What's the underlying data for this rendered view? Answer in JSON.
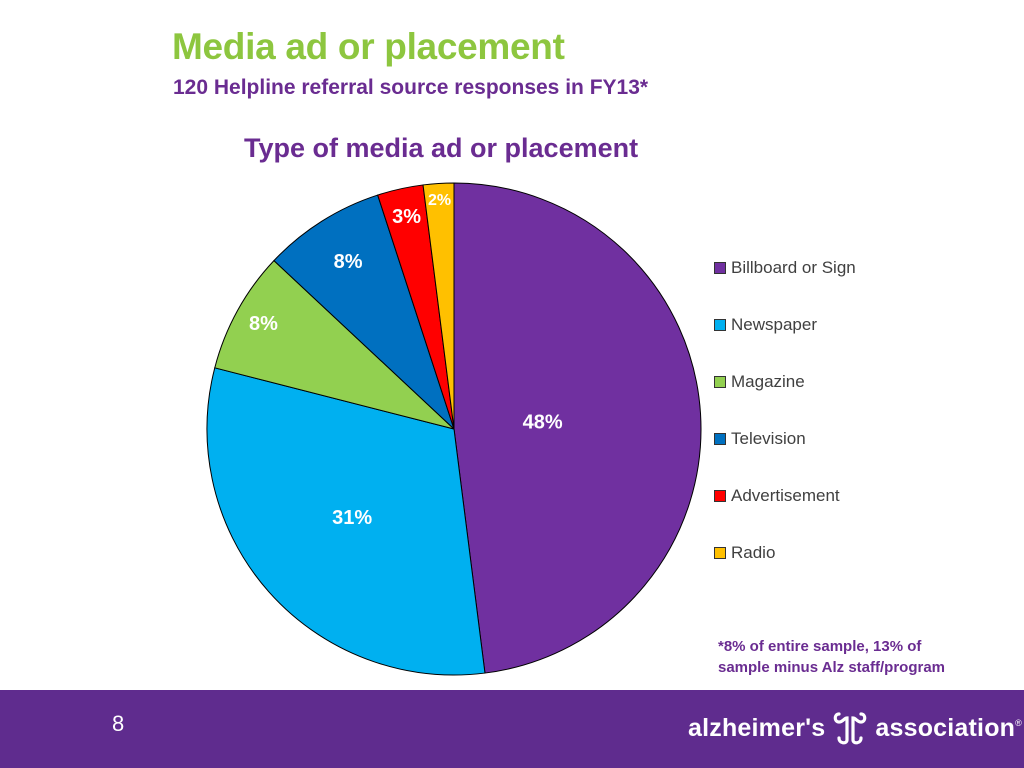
{
  "slide": {
    "title": "Media ad or placement",
    "subtitle": "120 Helpline referral source responses in FY13*",
    "footnote_line1": "*8% of entire sample, 13% of",
    "footnote_line2": "sample minus Alz staff/program",
    "page_number": "8"
  },
  "logo": {
    "word1": "alzheimer's",
    "word2": "association",
    "reg": "®"
  },
  "colors": {
    "title_green": "#8dc63f",
    "brand_purple": "#6a2c91",
    "footer_purple": "#5f2c8e"
  },
  "chart_data": {
    "type": "pie",
    "title": "Type of media ad or placement",
    "start_angle_deg": 0,
    "direction": "clockwise",
    "legend_position": "right",
    "slices": [
      {
        "label": "Billboard or Sign",
        "value": 48,
        "display": "48%",
        "color": "#7030a0"
      },
      {
        "label": "Newspaper",
        "value": 31,
        "display": "31%",
        "color": "#00b0f0"
      },
      {
        "label": "Magazine",
        "value": 8,
        "display": "8%",
        "color": "#92d050"
      },
      {
        "label": "Television",
        "value": 8,
        "display": "8%",
        "color": "#0070c0"
      },
      {
        "label": "Advertisement",
        "value": 3,
        "display": "3%",
        "color": "#ff0000"
      },
      {
        "label": "Radio",
        "value": 2,
        "display": "2%",
        "color": "#ffc000"
      }
    ]
  }
}
